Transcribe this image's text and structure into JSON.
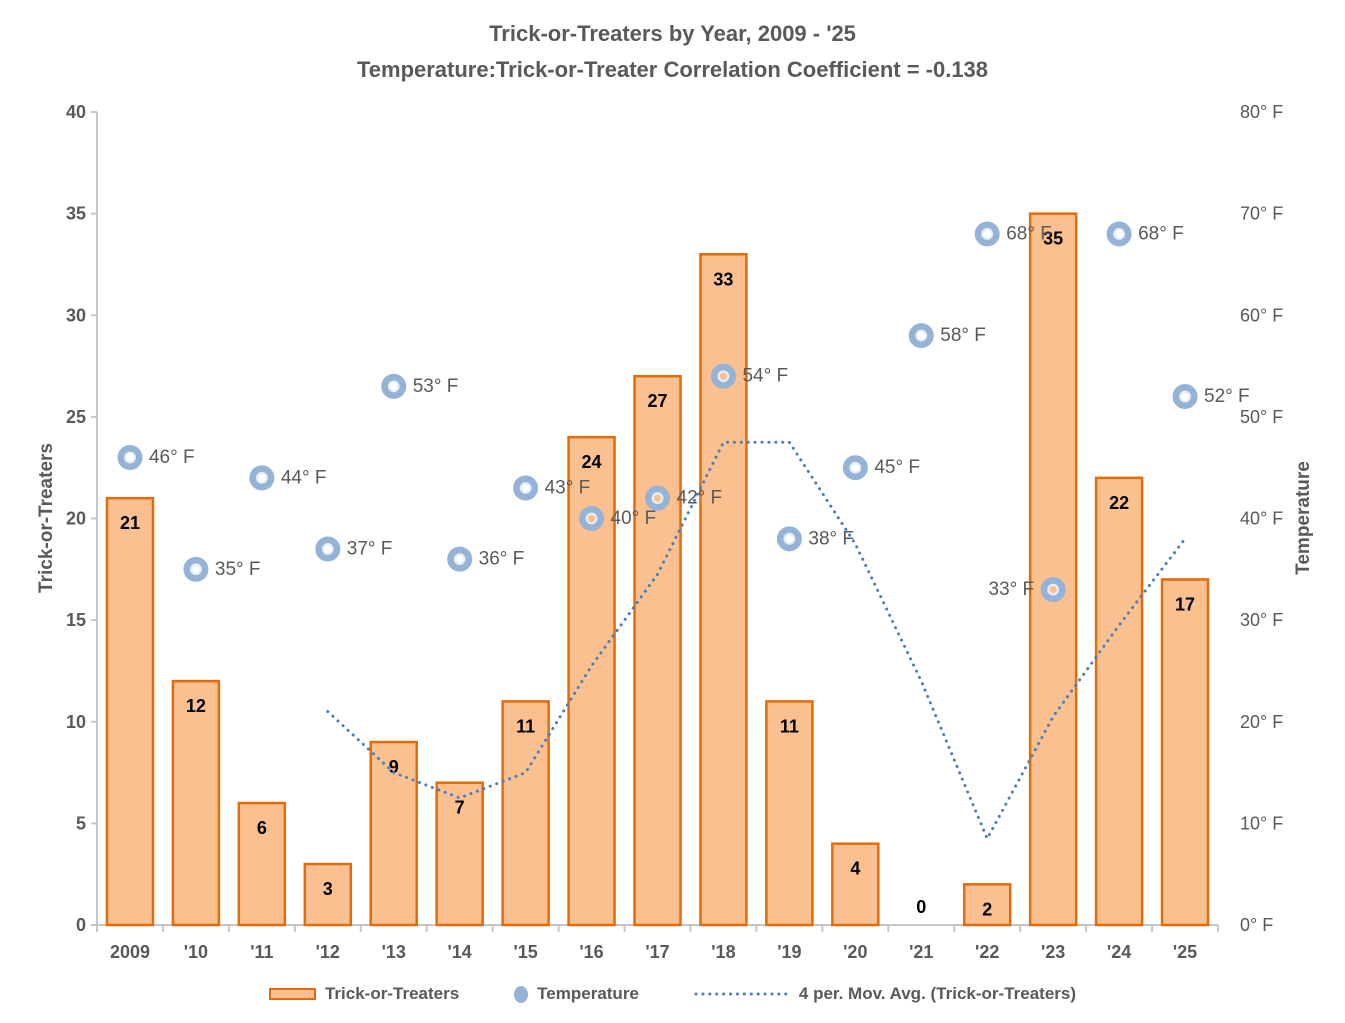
{
  "title": {
    "line1": "Trick-or-Treaters by Year, 2009 - '25",
    "line2": "Temperature:Trick-or-Treater Correlation Coefficient = -0.138"
  },
  "axes": {
    "left_title": "Trick-or-Treaters",
    "right_title": "Temperature",
    "left_ticks": [
      0,
      5,
      10,
      15,
      20,
      25,
      30,
      35,
      40
    ],
    "right_ticks": [
      "0° F",
      "10° F",
      "20° F",
      "30° F",
      "40° F",
      "50° F",
      "60° F",
      "70° F",
      "80° F"
    ]
  },
  "legend": [
    {
      "swatch": "bar",
      "label": "Trick-or-Treaters"
    },
    {
      "swatch": "marker",
      "label": "Temperature"
    },
    {
      "swatch": "dotted-line",
      "label": "4 per. Mov. Avg. (Trick-or-Treaters)"
    }
  ],
  "colors": {
    "bar_fill": "#FAC090",
    "bar_border": "#E36C0A",
    "marker_blue": "#95B3D7",
    "marker_ring": "#E8EEF7",
    "moving_avg_line": "#4A7EBB",
    "axis_line": "#C6C6C6",
    "text_gray": "#595959",
    "bar_label": "#000000"
  },
  "chart_data": {
    "type": "combo-bar-scatter-line",
    "categories": [
      "2009",
      "'10",
      "'11",
      "'12",
      "'13",
      "'14",
      "'15",
      "'16",
      "'17",
      "'18",
      "'19",
      "'20",
      "'21",
      "'22",
      "'23",
      "'24",
      "'25"
    ],
    "series": [
      {
        "name": "Trick-or-Treaters",
        "type": "bar",
        "axis": "left",
        "values": [
          21,
          12,
          6,
          3,
          9,
          7,
          11,
          24,
          27,
          33,
          11,
          4,
          0,
          2,
          35,
          22,
          17
        ]
      },
      {
        "name": "Temperature",
        "type": "scatter",
        "axis": "right",
        "values": [
          46,
          35,
          44,
          37,
          53,
          36,
          43,
          40,
          42,
          54,
          38,
          45,
          58,
          68,
          33,
          68,
          52
        ],
        "label_suffix": "° F",
        "left_label_indices": [
          14
        ]
      },
      {
        "name": "4 per. Mov. Avg. (Trick-or-Treaters)",
        "type": "dotted-line",
        "axis": "left",
        "values": [
          null,
          null,
          null,
          10.5,
          7.5,
          6.25,
          7.5,
          12.75,
          17.25,
          23.75,
          23.75,
          18.75,
          12,
          4.25,
          10.25,
          14.75,
          19
        ]
      }
    ],
    "ylim_left": [
      0,
      40
    ],
    "ylim_right": [
      0,
      80
    ],
    "grid": false,
    "legend_position": "bottom",
    "title": "Trick-or-Treaters by Year, 2009 - '25",
    "subtitle": "Temperature:Trick-or-Treater Correlation Coefficient = -0.138",
    "xlabel": "",
    "ylabel_left": "Trick-or-Treaters",
    "ylabel_right": "Temperature"
  }
}
